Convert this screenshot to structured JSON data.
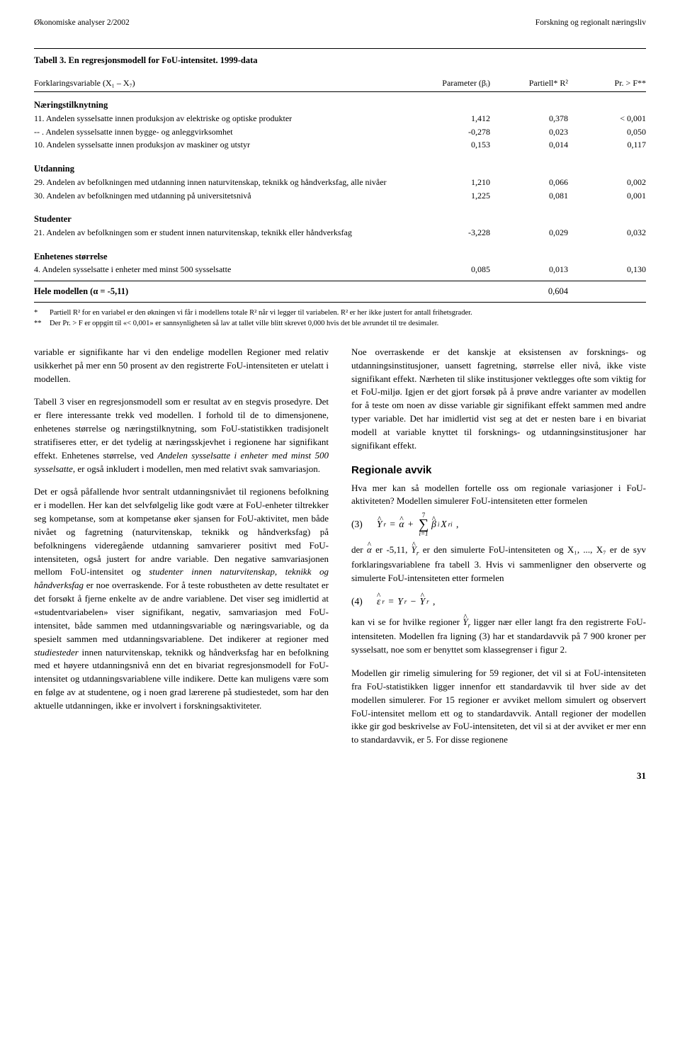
{
  "header": {
    "left": "Økonomiske analyser 2/2002",
    "right": "Forskning og regionalt næringsliv"
  },
  "table": {
    "title": "Tabell 3. En regresjonsmodell for FoU-intensitet. 1999-data",
    "head": {
      "label": "Forklaringsvariable (X₁ – X₇)",
      "param": "Parameter (βᵢ)",
      "r2": "Partiell* R²",
      "pf": "Pr. > F**"
    },
    "sections": [
      {
        "title": "Næringstilknytning",
        "rows": [
          {
            "lbl": "11. Andelen sysselsatte innen produksjon av elektriske og optiske produkter",
            "v1": "1,412",
            "v2": "0,378",
            "v3": "< 0,001"
          },
          {
            "lbl": "-- . Andelen sysselsatte innen bygge- og anleggvirksomhet",
            "v1": "-0,278",
            "v2": "0,023",
            "v3": "0,050"
          },
          {
            "lbl": "10. Andelen sysselsatte innen produksjon av maskiner og utstyr",
            "v1": "0,153",
            "v2": "0,014",
            "v3": "0,117"
          }
        ]
      },
      {
        "title": "Utdanning",
        "rows": [
          {
            "lbl": "29. Andelen av befolkningen med utdanning innen naturvitenskap, teknikk og håndverksfag, alle nivåer",
            "v1": "1,210",
            "v2": "0,066",
            "v3": "0,002"
          },
          {
            "lbl": "30. Andelen av befolkningen med utdanning på universitetsnivå",
            "v1": "1,225",
            "v2": "0,081",
            "v3": "0,001"
          }
        ]
      },
      {
        "title": "Studenter",
        "rows": [
          {
            "lbl": "21. Andelen av befolkningen som er student innen naturvitenskap, teknikk eller håndverksfag",
            "v1": "-3,228",
            "v2": "0,029",
            "v3": "0,032"
          }
        ]
      },
      {
        "title": "Enhetenes størrelse",
        "rows": [
          {
            "lbl": "4. Andelen sysselsatte i enheter med minst 500 sysselsatte",
            "v1": "0,085",
            "v2": "0,013",
            "v3": "0,130"
          }
        ]
      }
    ],
    "hele": {
      "label": "Hele modellen (α = -5,11)",
      "r2": "0,604"
    },
    "footnotes": [
      {
        "mark": "*",
        "text": "Partiell R² for en variabel er den økningen vi får i modellens totale R² når vi legger til variabelen. R² er her ikke justert for antall frihetsgrader."
      },
      {
        "mark": "**",
        "text": "Der Pr. > F er oppgitt til «< 0,001» er sannsynligheten så lav at tallet ville blitt skrevet 0,000 hvis det ble avrundet til tre desimaler."
      }
    ]
  },
  "left_paras": [
    "variable er signifikante har vi den endelige modellen Regioner med relativ usikkerhet på mer enn 50 prosent av den registrerte FoU-intensiteten er utelatt i modellen.",
    "Tabell 3 viser en regresjonsmodell som er resultat av en stegvis prosedyre. Det er flere interessante trekk ved modellen. I forhold til de to dimensjonene, enhetenes størrelse og næringstilknytning, som FoU-statistikken tradisjonelt stratifiseres etter, er det tydelig at næringsskjevhet i regionene har signifikant effekt. Enhetenes størrelse, ved Andelen sysselsatte i enheter med minst 500 sysselsatte, er også inkludert i modellen, men med relativt svak samvariasjon.",
    "Det er også påfallende hvor sentralt utdanningsnivået til regionens befolkning er i modellen. Her kan det selvfølgelig like godt være at FoU-enheter tiltrekker seg kompetanse, som at kompetanse øker sjansen for FoU-aktivitet, men både nivået og fagretning (naturvitenskap, teknikk og håndverksfag) på befolkningens videregående utdanning samvarierer positivt med FoU-intensiteten, også justert for andre variable. Den negative samvariasjonen mellom FoU-intensitet og studenter innen naturvitenskap, teknikk og håndverksfag er noe overraskende. For å teste robustheten av dette resultatet er det forsøkt å fjerne enkelte av de andre variablene. Det viser seg imidlertid at «studentvariabelen» viser signifikant, negativ, samvariasjon med FoU-intensitet, både sammen med utdanningsvariable og næringsvariable, og da spesielt sammen med utdanningsvariablene. Det indikerer at regioner med studiesteder innen naturvitenskap, teknikk og håndverksfag har en befolkning med et høyere utdanningsnivå enn det en bivariat regresjonsmodell for FoU-intensitet og utdanningsvariablene ville indikere. Dette kan muligens være som en følge av at studentene, og i noen grad lærerene på studiestedet, som har den aktuelle utdanningen, ikke er involvert i forskningsaktiviteter."
  ],
  "right_paras": {
    "p1": "Noe overraskende er det kanskje at eksistensen av forsknings- og utdanningsinstitusjoner, uansett fagretning, størrelse eller nivå, ikke viste signifikant effekt. Nærheten til slike institusjoner vektlegges ofte som viktig for et FoU-miljø. Igjen er det gjort forsøk på å prøve andre varianter av modellen for å teste om noen av disse variable gir signifikant effekt sammen med andre typer variable. Det har imidlertid vist seg at det er nesten bare i en bivariat modell at variable knyttet til forsknings- og utdanningsinstitusjoner har signifikant effekt.",
    "h2": "Regionale avvik",
    "p2": "Hva mer kan så modellen fortelle oss om regionale variasjoner i FoU-aktiviteten? Modellen simulerer FoU-intensiteten etter formelen",
    "f3_num": "(3)",
    "p3a": "der ",
    "p3b": " er -5,11, ",
    "p3c": " er den simulerte FoU-intensiteten og X₁, ..., X₇ er de syv forklaringsvariablene fra tabell 3. Hvis vi sammenligner den observerte og simulerte FoU-intensiteten etter formelen",
    "f4_num": "(4)",
    "p4a": "kan vi se for hvilke regioner ",
    "p4b": " ligger nær eller langt fra den registrerte FoU-intensiteten. Modellen fra ligning (3) har et standardavvik på 7 900 kroner per sysselsatt, noe som er benyttet som klassegrenser i figur 2.",
    "p5": "Modellen gir rimelig simulering for 59 regioner, det vil si at FoU-intensiteten fra FoU-statistikken ligger innenfor ett standardavvik til hver side av det modellen simulerer. For 15 regioner er avviket mellom simulert og observert FoU-intensitet mellom ett og to standardavvik. Antall regioner der modellen ikke gir god beskrivelse av FoU-intensiteten, det vil si at der avviket er mer enn to standardavvik, er 5. For disse regionene"
  },
  "pagenum": "31"
}
